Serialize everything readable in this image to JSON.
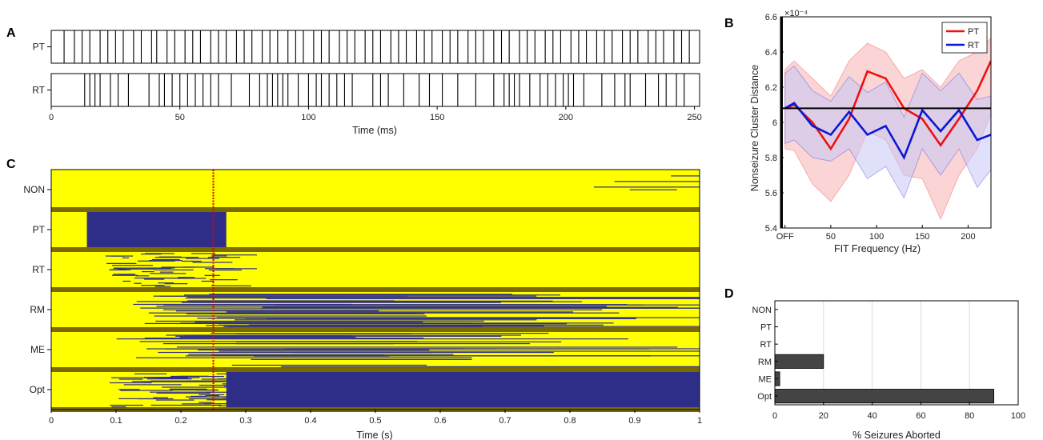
{
  "chart_data": [
    {
      "panel": "A",
      "type": "raster",
      "rows": [
        "PT",
        "RT"
      ],
      "xlabel": "Time (ms)",
      "xlim": [
        0,
        252
      ],
      "xticks": [
        0,
        50,
        100,
        150,
        200,
        250
      ],
      "series": [
        {
          "name": "PT",
          "spikes": [
            5,
            9,
            12,
            15,
            19,
            22,
            25,
            28,
            32,
            35,
            39,
            41,
            45,
            48,
            52,
            55,
            58,
            62,
            65,
            68,
            72,
            75,
            78,
            82,
            85,
            88,
            92,
            95,
            98,
            102,
            105,
            108,
            112,
            115,
            118,
            122,
            125,
            128,
            132,
            135,
            138,
            142,
            145,
            148,
            152,
            155,
            158,
            162,
            165,
            168,
            172,
            175,
            178,
            182,
            185,
            188,
            192,
            195,
            198,
            202,
            205,
            208,
            212,
            215,
            218,
            222,
            225,
            228,
            232,
            235,
            238,
            242,
            245,
            248
          ]
        },
        {
          "name": "RT",
          "spikes": [
            13,
            15,
            17,
            19,
            23,
            26,
            30,
            38,
            42,
            44,
            47,
            50,
            53,
            56,
            59,
            62,
            65,
            70,
            77,
            81,
            84,
            86,
            88,
            90,
            92,
            96,
            100,
            103,
            105,
            108,
            111,
            114,
            117,
            125,
            128,
            131,
            137,
            143,
            147,
            152,
            158,
            165,
            172,
            176,
            178,
            180,
            182,
            186,
            190,
            193,
            196,
            199,
            201,
            203,
            207,
            214,
            219,
            223,
            225,
            231,
            236,
            239,
            243,
            246
          ]
        }
      ]
    },
    {
      "panel": "B",
      "type": "line",
      "xlabel": "FIT Frequency (Hz)",
      "ylabel": "Nonseizure Cluster Distance",
      "y_exponent": "×10⁻⁴",
      "xlim": [
        -5,
        225
      ],
      "ylim": [
        5.4,
        6.6
      ],
      "xticks": [
        "OFF",
        "50",
        "100",
        "150",
        "200"
      ],
      "yticks": [
        5.4,
        5.6,
        5.8,
        6.0,
        6.2,
        6.4,
        6.6
      ],
      "legend_position": "top-right",
      "reference_line": 6.08,
      "series": [
        {
          "name": "PT",
          "color": "#ee1111",
          "band_color": "#f7b3b3",
          "x": [
            0,
            10,
            30,
            50,
            70,
            90,
            110,
            130,
            150,
            170,
            190,
            210,
            225
          ],
          "y": [
            6.08,
            6.1,
            6.0,
            5.85,
            6.02,
            6.29,
            6.25,
            6.08,
            6.02,
            5.87,
            6.02,
            6.18,
            6.35
          ],
          "lower": [
            5.85,
            5.84,
            5.65,
            5.55,
            5.7,
            5.95,
            5.9,
            5.7,
            5.68,
            5.45,
            5.7,
            5.85,
            6.05
          ],
          "upper": [
            6.3,
            6.35,
            6.25,
            6.15,
            6.35,
            6.45,
            6.4,
            6.25,
            6.3,
            6.2,
            6.35,
            6.4,
            6.48
          ]
        },
        {
          "name": "RT",
          "color": "#0a18d6",
          "band_color": "#c6c6f5",
          "x": [
            0,
            10,
            30,
            50,
            70,
            90,
            110,
            130,
            150,
            170,
            190,
            210,
            225
          ],
          "y": [
            6.08,
            6.11,
            5.98,
            5.93,
            6.06,
            5.93,
            5.98,
            5.8,
            6.07,
            5.95,
            6.07,
            5.9,
            5.93
          ],
          "lower": [
            5.88,
            5.9,
            5.8,
            5.78,
            5.85,
            5.68,
            5.75,
            5.57,
            5.85,
            5.7,
            5.85,
            5.63,
            5.73
          ],
          "upper": [
            6.28,
            6.32,
            6.18,
            6.12,
            6.26,
            6.17,
            6.23,
            6.03,
            6.28,
            6.18,
            6.28,
            6.13,
            6.15
          ]
        }
      ]
    },
    {
      "panel": "C",
      "type": "heatmap",
      "xlabel": "Time (s)",
      "xlim": [
        0,
        1
      ],
      "xticks": [
        "0",
        "0.1",
        "0.2",
        "0.3",
        "0.4",
        "0.5",
        "0.6",
        "0.7",
        "0.8",
        "0.9",
        "1"
      ],
      "groups": [
        "NON",
        "PT",
        "RT",
        "RM",
        "ME",
        "Opt"
      ],
      "marker_time": 0.25,
      "colors": {
        "background": "#ffff00",
        "state": "#2e2e88",
        "separator": "#7a6a00",
        "marker": "#dd0000"
      },
      "blocks": [
        {
          "group": "PT",
          "start": 0.055,
          "end": 0.27
        },
        {
          "group": "Opt",
          "start": 0.27,
          "end": 1.0
        }
      ]
    },
    {
      "panel": "D",
      "type": "bar",
      "orientation": "horizontal",
      "xlabel": "% Seizures Aborted",
      "xlim": [
        0,
        100
      ],
      "xticks": [
        0,
        20,
        40,
        60,
        80,
        100
      ],
      "categories": [
        "NON",
        "PT",
        "RT",
        "RM",
        "ME",
        "Opt"
      ],
      "values": [
        0,
        0,
        0,
        20,
        2,
        90
      ],
      "bar_color": "#444444"
    }
  ]
}
